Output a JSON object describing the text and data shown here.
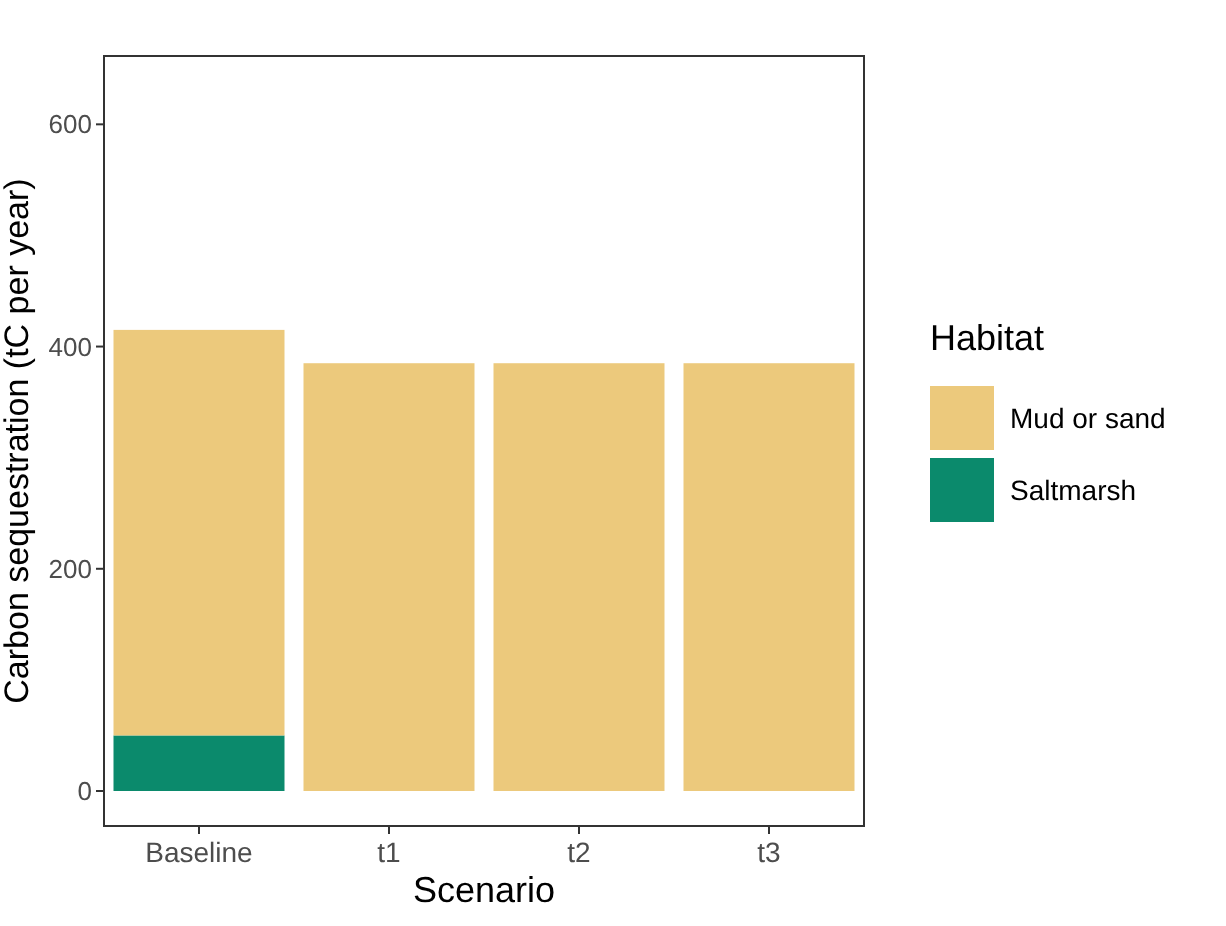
{
  "chart_data": {
    "type": "bar",
    "stacked": true,
    "xlabel": "Scenario",
    "ylabel": "Carbon sequestration (tC per year)",
    "legend_title": "Habitat",
    "legend": "right",
    "grid": false,
    "categories": [
      "Baseline",
      "t1",
      "t2",
      "t3"
    ],
    "series": [
      {
        "name": "Saltmarsh",
        "color": "#0b8a6c",
        "values": [
          50,
          0,
          0,
          0
        ]
      },
      {
        "name": "Mud or sand",
        "color": "#ecc97c",
        "values": [
          365,
          385,
          385,
          385
        ]
      }
    ],
    "ylim": [
      -31.5,
      661.5
    ],
    "yticks": [
      0,
      200,
      400,
      600
    ]
  }
}
